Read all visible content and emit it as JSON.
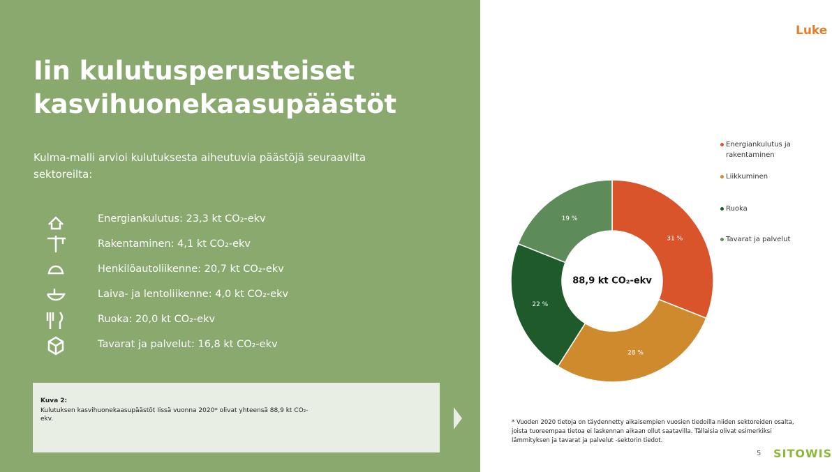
{
  "title": [
    "Iin kulutusperusteiset",
    "kasvihuonekaasupäästöt"
  ],
  "subtitle": "Kulma-malli arvioi kulutuksesta aiheutuvia päästöjä seuraavilta sektoreilta:",
  "items": [
    "Energiankulutus: 23,3 kt CO₂-ekv",
    "Rakentaminen: 4,1 kt CO₂-ekv",
    "Henkilöautoliikenne: 20,7 kt CO₂-ekv",
    "Laiva- ja lentoliikenne: 4,0 kt CO₂-ekv",
    "Ruoka: 20,0 kt CO₂-ekv",
    "Tavarat ja palvelut: 16,8 kt CO₂-ekv"
  ],
  "caption": {
    "heading": "Kuva 2:",
    "text": "Kulutuksen kasvihuonekaasupäästöt Iissä vuonna 2020* olivat yhteensä 88,9 kt CO₂-ekv."
  },
  "logo": "Luke",
  "footnote": "* Vuoden 2020 tietoja on täydennetty aikaisempien vuosien tiedoilla niiden sektoreiden osalta, joista tuoreempaa tietoa ei laskennan aikaan ollut saatavilla. Tällaisia olivat esimerkiksi lämmityksen ja tavarat ja palvelut -sektorin tiedot.",
  "page_number": "5",
  "brand": "SITOWISE",
  "chart_data": {
    "type": "pie",
    "center_label": "88,9 kt CO₂-ekv",
    "categories": [
      "Energiankulutus ja rakentaminen",
      "Liikkuminen",
      "Ruoka",
      "Tavarat ja palvelut"
    ],
    "values": [
      31,
      28,
      22,
      19
    ],
    "value_labels": [
      "31 %",
      "28 %",
      "22 %",
      "19 %"
    ],
    "colors": [
      "#d9542a",
      "#d08a2e",
      "#1e5a2a",
      "#5e8b5a"
    ],
    "legend": "right"
  }
}
